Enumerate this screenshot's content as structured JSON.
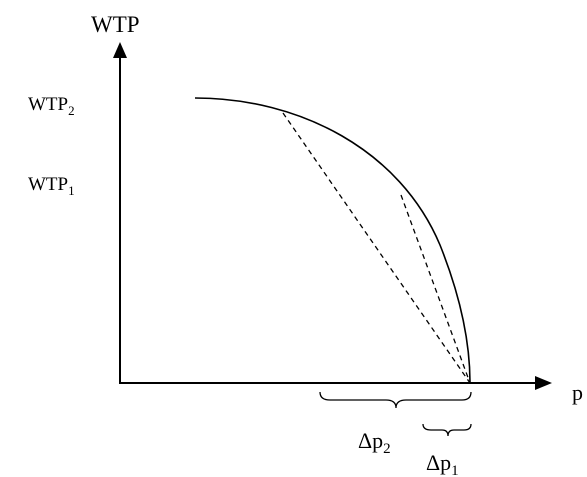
{
  "diagram": {
    "y_axis_label": "WTP",
    "x_axis_label": "p",
    "wtp2": {
      "base": "WTP",
      "sub": "2"
    },
    "wtp1": {
      "base": "WTP",
      "sub": "1"
    },
    "dp2": {
      "base": "Δp",
      "sub": "2"
    },
    "dp1": {
      "base": "Δp",
      "sub": "1"
    },
    "colors": {
      "ink": "#000000",
      "background": "#ffffff"
    }
  }
}
